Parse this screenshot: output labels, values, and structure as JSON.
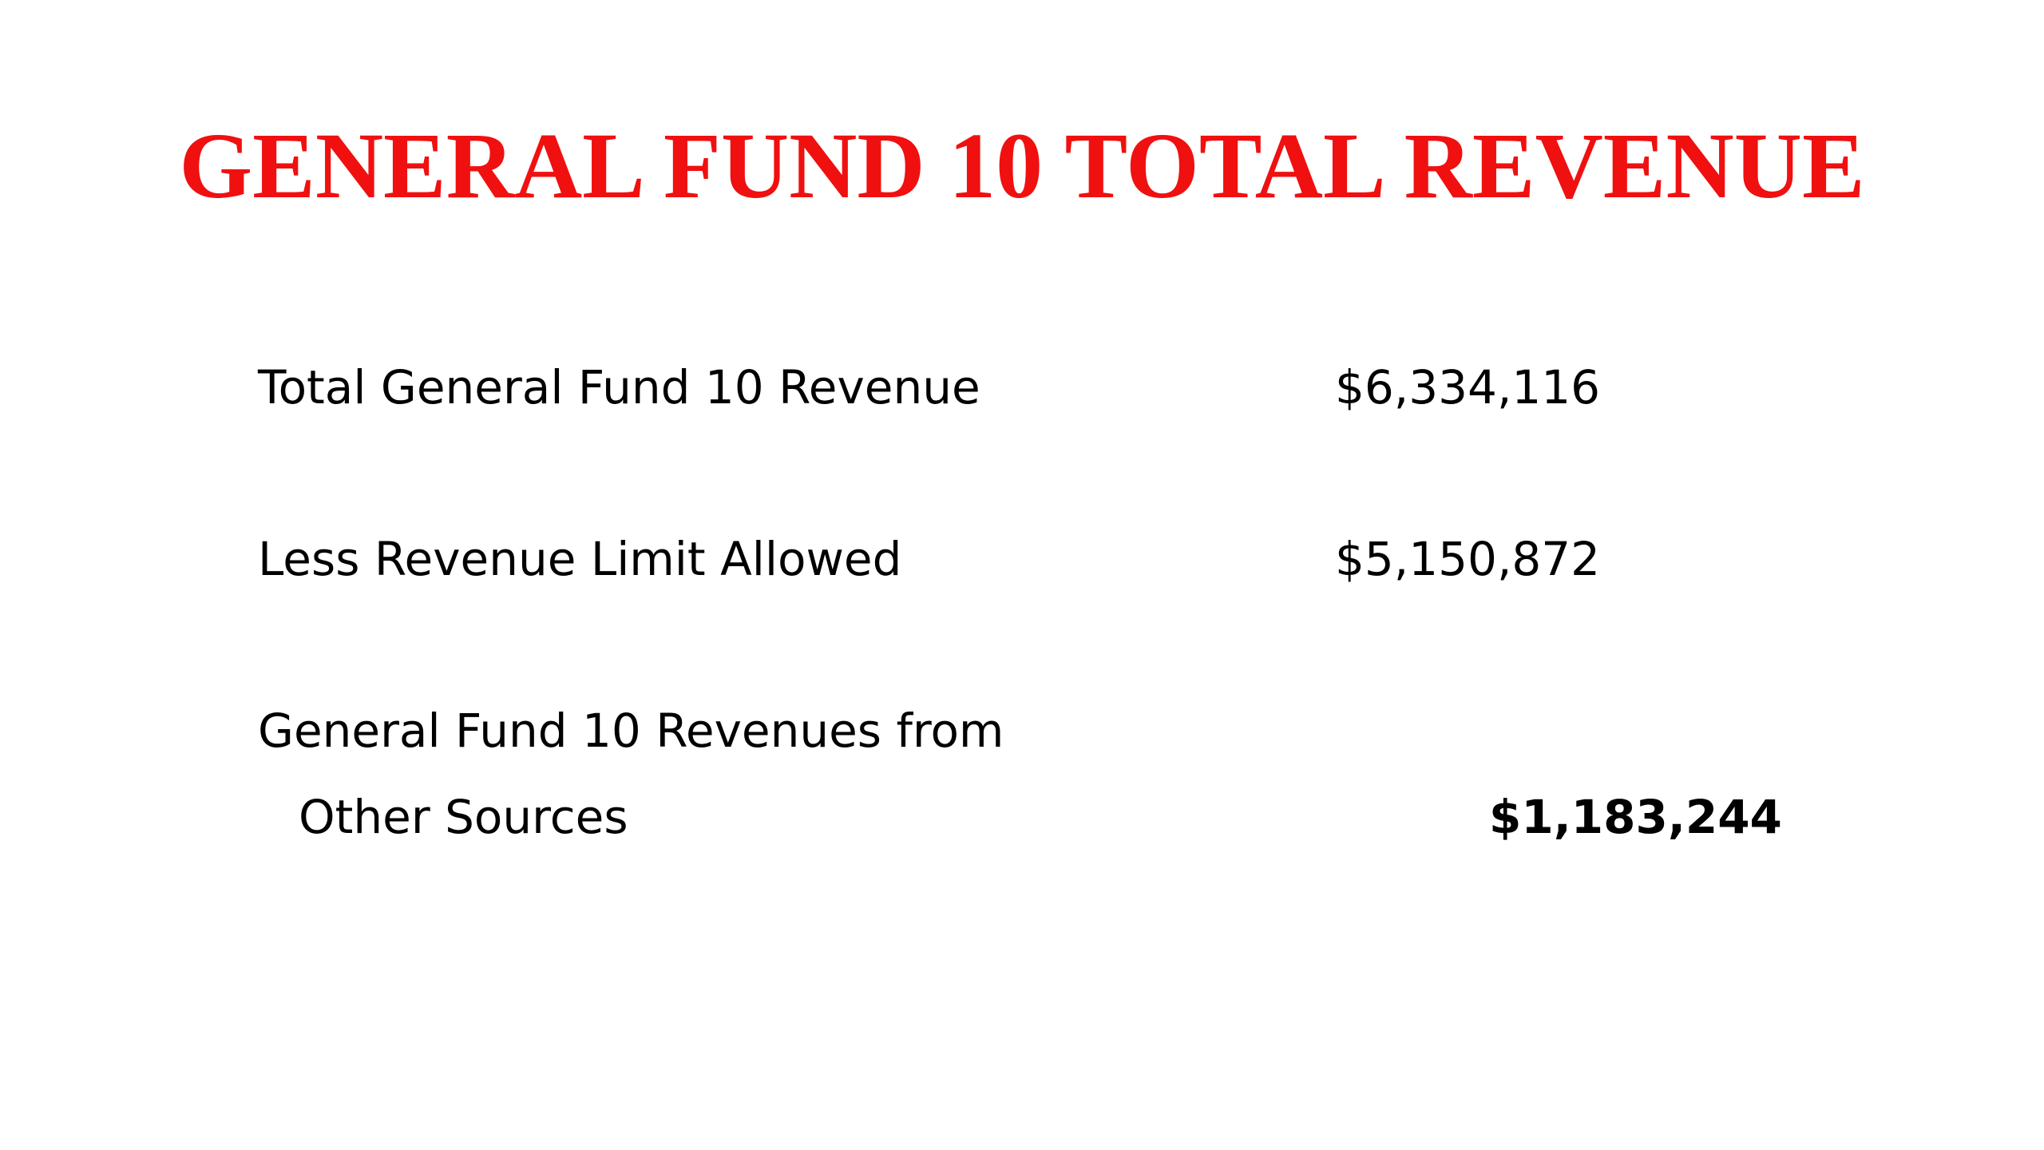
{
  "title": "GENERAL FUND 10 TOTAL REVENUE",
  "colors": {
    "title": "#f01010",
    "text": "#000000",
    "background": "#ffffff"
  },
  "rows": [
    {
      "label": "Total General Fund 10 Revenue",
      "value": "$6,334,116"
    },
    {
      "label": "Less Revenue Limit Allowed",
      "value": "$5,150,872"
    },
    {
      "label_line1": "General Fund 10 Revenues from",
      "label_line2": "Other Sources",
      "value": "$1,183,244"
    }
  ]
}
